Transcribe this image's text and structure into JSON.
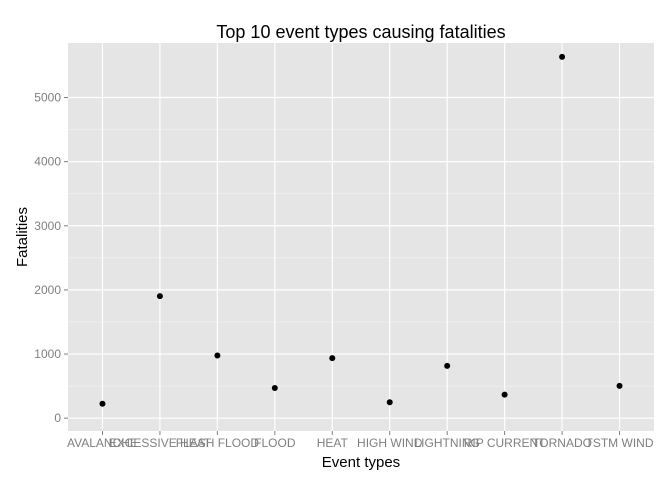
{
  "chart_data": {
    "type": "scatter",
    "title": "Top 10 event types causing fatalities",
    "xlabel": "Event types",
    "ylabel": "Fatalities",
    "categories": [
      "AVALANCHE",
      "EXCESSIVE HEAT",
      "FLASH FLOOD",
      "FLOOD",
      "HEAT",
      "HIGH WIND",
      "LIGHTNING",
      "RIP CURRENT",
      "TORNADO",
      "TSTM WIND"
    ],
    "values": [
      224,
      1903,
      978,
      470,
      937,
      248,
      816,
      368,
      5633,
      504
    ],
    "y_ticks": [
      0,
      1000,
      2000,
      3000,
      4000,
      5000
    ],
    "ylim": [
      -200,
      5850
    ],
    "grid": true,
    "legend": "none",
    "colors": {
      "panel": "#e5e5e5",
      "grid_major": "#ffffff",
      "grid_minor": "#f2f2f2",
      "point": "#000000",
      "tick_text": "#7f7f7f"
    }
  }
}
